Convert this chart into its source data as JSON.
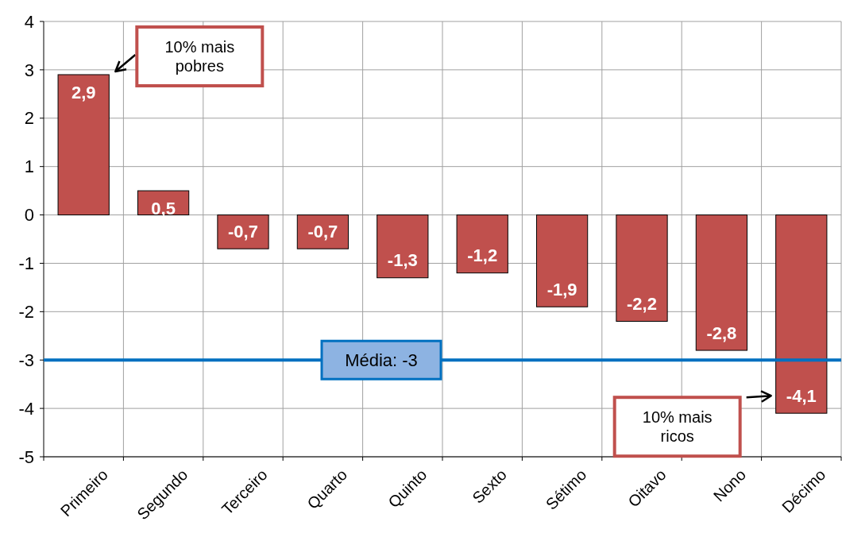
{
  "chart_data": {
    "type": "bar",
    "categories": [
      "Primeiro",
      "Segundo",
      "Terceiro",
      "Quarto",
      "Quinto",
      "Sexto",
      "Sétimo",
      "Oitavo",
      "Nono",
      "Décimo"
    ],
    "values": [
      2.9,
      0.5,
      -0.7,
      -0.7,
      -1.3,
      -1.2,
      -1.9,
      -2.2,
      -2.8,
      -4.1
    ],
    "color": "#c0504d",
    "ylim": [
      -5,
      4
    ],
    "yticks": [
      {
        "value": -5,
        "label": "-5"
      },
      {
        "value": -4,
        "label": "-4"
      },
      {
        "value": -3,
        "label": "-3"
      },
      {
        "value": -2,
        "label": "-2"
      },
      {
        "value": -1,
        "label": "-1"
      },
      {
        "value": 0,
        "label": "0"
      },
      {
        "value": 1,
        "label": "1"
      },
      {
        "value": 2,
        "label": "2"
      },
      {
        "value": 3,
        "label": "3"
      },
      {
        "value": 4,
        "label": "4"
      }
    ],
    "value_labels": [
      "2,9",
      "0,5",
      "-0,7",
      "-0,7",
      "-1,3",
      "-1,2",
      "-1,9",
      "-2,2",
      "-2,8",
      "-4,1"
    ],
    "grid": true,
    "ref_lines": [
      {
        "axis": "y",
        "value": -3,
        "label": "Média: -3",
        "color": "#0070c0"
      }
    ],
    "annotations": [
      "10% mais pobres",
      "10% mais ricos"
    ]
  }
}
